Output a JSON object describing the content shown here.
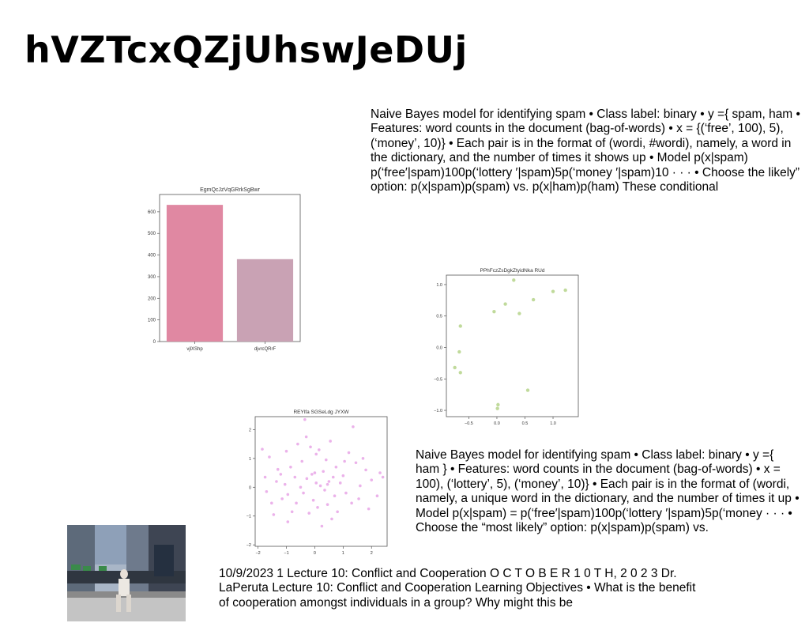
{
  "page": {
    "title": "hVZTcxQZjUhswJeDUj"
  },
  "text_blocks": [
    "Naive Bayes model for identifying spam • Class label: binary • y ={ spam, ham • Features: word counts in the document (bag-of-words) • x = {(‘free’, 100), 5), (‘money’, 10)} • Each pair is in the format of (wordi, #wordi), namely, a word in the dictionary, and the number of times it shows up • Model p(x|spam) p(‘free′|spam)100p(‘lottery ′|spam)5p(‘money ′|spam)10 · · · • Choose the likely” option: p(x|spam)p(spam) vs. p(x|ham)p(ham) These conditional",
    "Naive Bayes model for identifying spam • Class label: binary • y ={ ham } • Features: word counts in the document (bag-of-words) • x = 100), (‘lottery’, 5), (‘money’, 10)} • Each pair is in the format of (wordi, namely, a unique word in the dictionary, and the number of times it up • Model p(x|spam) = p(‘free′|spam)100p(‘lottery ′|spam)5p(‘money · · · • Choose the “most likely” option: p(x|spam)p(spam) vs.",
    "10/9/2023 1 Lecture 10: Conflict and Cooperation O C T O B E R 1 0 T H, 2 0 2 3 Dr. LaPeruta Lecture 10: Conflict and Cooperation Learning Objectives • What is the benefit of cooperation amongst individuals in a group? Why might this be"
  ],
  "chart_data": [
    {
      "type": "bar",
      "title": "EgmQcJzVqGRrkSgBwr",
      "categories": [
        "vjlXShp",
        "djvrcQRrF"
      ],
      "values": [
        632,
        381
      ],
      "colors": [
        "#e088a2",
        "#c9a2b4"
      ],
      "ylim": [
        0,
        680
      ],
      "yticks": [
        0,
        100,
        200,
        300,
        400,
        500,
        600
      ],
      "grid": false
    },
    {
      "type": "scatter",
      "title": "PPhFczZsDgkZtyidNka RUd",
      "color": "#b5d38a",
      "xlim": [
        -0.9,
        1.45
      ],
      "ylim": [
        -1.1,
        1.15
      ],
      "xticks": [
        -0.5,
        0.0,
        0.5,
        1.0
      ],
      "yticks": [
        -1.0,
        -0.5,
        0.0,
        0.5,
        1.0
      ],
      "xtick_labels": [
        "−0.5",
        "0.0",
        "0.5",
        "1.0"
      ],
      "ytick_labels": [
        "−1.0",
        "−0.5",
        "0.0",
        "0.5",
        "1.0"
      ],
      "points": [
        [
          -0.75,
          -0.32
        ],
        [
          -0.67,
          -0.07
        ],
        [
          -0.65,
          0.34
        ],
        [
          -0.65,
          -0.4
        ],
        [
          -0.05,
          0.57
        ],
        [
          0.02,
          -0.91
        ],
        [
          0.01,
          -0.97
        ],
        [
          0.15,
          0.69
        ],
        [
          0.3,
          1.07
        ],
        [
          0.4,
          0.54
        ],
        [
          0.55,
          -0.68
        ],
        [
          0.65,
          0.76
        ],
        [
          1.0,
          0.89
        ],
        [
          1.22,
          0.91
        ]
      ],
      "grid": false
    },
    {
      "type": "scatter",
      "title": "REYlfa SGSeLdg JYXW",
      "color": "#e8a4e6",
      "xlim": [
        -2.1,
        2.55
      ],
      "ylim": [
        -2.05,
        2.45
      ],
      "xticks": [
        -2,
        -1,
        0,
        1,
        2
      ],
      "yticks": [
        -2,
        -1,
        0,
        1,
        2
      ],
      "xtick_labels": [
        "−2",
        "−1",
        "0",
        "1",
        "2"
      ],
      "ytick_labels": [
        "−2",
        "−1",
        "0",
        "1",
        "2"
      ],
      "points": [
        [
          -1.85,
          1.32
        ],
        [
          -1.75,
          0.35
        ],
        [
          -1.7,
          -0.15
        ],
        [
          -1.6,
          1.05
        ],
        [
          -1.52,
          -0.55
        ],
        [
          -1.45,
          -0.95
        ],
        [
          -1.3,
          0.62
        ],
        [
          -1.2,
          0.45
        ],
        [
          -1.15,
          -0.4
        ],
        [
          -1.05,
          0.1
        ],
        [
          -1.0,
          1.25
        ],
        [
          -0.95,
          -0.25
        ],
        [
          -0.85,
          0.7
        ],
        [
          -0.8,
          -0.85
        ],
        [
          -0.7,
          0.35
        ],
        [
          -0.65,
          -0.55
        ],
        [
          -0.6,
          1.5
        ],
        [
          -0.5,
          0.0
        ],
        [
          -0.45,
          0.9
        ],
        [
          -0.4,
          -0.2
        ],
        [
          -0.35,
          2.35
        ],
        [
          -0.3,
          1.75
        ],
        [
          -0.28,
          0.3
        ],
        [
          -0.2,
          -0.9
        ],
        [
          -0.15,
          1.4
        ],
        [
          -0.1,
          0.45
        ],
        [
          -0.05,
          -0.45
        ],
        [
          0.0,
          0.5
        ],
        [
          0.05,
          1.15
        ],
        [
          0.1,
          -0.7
        ],
        [
          0.15,
          1.3
        ],
        [
          0.2,
          0.05
        ],
        [
          0.25,
          -1.35
        ],
        [
          0.3,
          0.55
        ],
        [
          0.35,
          -0.1
        ],
        [
          0.4,
          0.95
        ],
        [
          0.45,
          -0.6
        ],
        [
          0.5,
          0.2
        ],
        [
          0.55,
          1.6
        ],
        [
          0.6,
          -1.1
        ],
        [
          0.65,
          0.35
        ],
        [
          0.7,
          -0.3
        ],
        [
          0.75,
          0.7
        ],
        [
          0.8,
          -0.85
        ],
        [
          0.9,
          0.15
        ],
        [
          1.0,
          0.4
        ],
        [
          1.1,
          -0.2
        ],
        [
          1.2,
          1.2
        ],
        [
          1.3,
          -0.55
        ],
        [
          1.35,
          2.1
        ],
        [
          1.45,
          0.85
        ],
        [
          1.55,
          -0.4
        ],
        [
          1.6,
          0.05
        ],
        [
          1.7,
          1.0
        ],
        [
          1.8,
          0.6
        ],
        [
          1.9,
          -0.75
        ],
        [
          2.0,
          0.25
        ],
        [
          2.2,
          -0.3
        ],
        [
          2.3,
          0.5
        ],
        [
          2.4,
          0.35
        ],
        [
          -0.95,
          -1.2
        ],
        [
          0.05,
          0.15
        ],
        [
          0.45,
          0.1
        ],
        [
          -1.35,
          0.2
        ],
        [
          1.05,
          0.9
        ]
      ],
      "grid": false
    }
  ],
  "photo": {
    "icon": "street-photo-icon"
  }
}
